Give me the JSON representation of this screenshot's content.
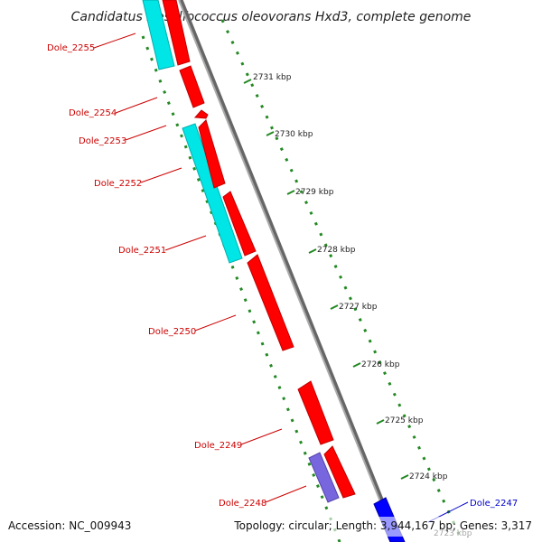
{
  "title": "Candidatus Desulfococcus oleovorans Hxd3, complete genome",
  "footer": {
    "accession": "Accession: NC_009943",
    "summary": "Topology: circular; Length: 3,944,167 bp; Genes: 3,317"
  },
  "scale_labels": [
    "2731 kbp",
    "2730 kbp",
    "2729 kbp",
    "2728 kbp",
    "2727 kbp",
    "2726 kbp",
    "2725 kbp",
    "2724 kbp",
    "2723 kbp"
  ],
  "gene_labels": [
    {
      "text": "Dole_2255",
      "color": "#cc0000"
    },
    {
      "text": "Dole_2254",
      "color": "#cc0000"
    },
    {
      "text": "Dole_2253",
      "color": "#cc0000"
    },
    {
      "text": "Dole_2252",
      "color": "#cc0000"
    },
    {
      "text": "Dole_2251",
      "color": "#cc0000"
    },
    {
      "text": "Dole_2250",
      "color": "#cc0000"
    },
    {
      "text": "Dole_2249",
      "color": "#cc0000"
    },
    {
      "text": "Dole_2248",
      "color": "#cc0000"
    },
    {
      "text": "Dole_2247",
      "color": "#0000cc"
    }
  ],
  "colors": {
    "cds": "#ff0000",
    "cds_edge": "#c00000",
    "orf": "#00e5e5",
    "orf_edge": "#00b0b0",
    "rna": "#7766dd",
    "rna_edge": "#5544aa",
    "reverse": "#0000ff",
    "backbone": "#888888",
    "ticks": "#228822"
  }
}
